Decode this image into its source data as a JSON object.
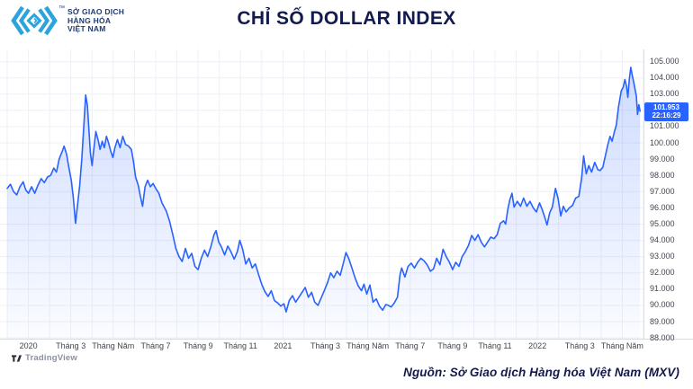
{
  "header": {
    "logo": {
      "trademark": "™",
      "lines": [
        "SỞ GIAO DỊCH",
        "HÀNG HÓA",
        "VIỆT NAM"
      ],
      "icon_color": "#2ba3dc",
      "text_color": "#1f3a70"
    },
    "title": "CHỈ SỐ DOLLAR INDEX",
    "title_color": "#131b4e"
  },
  "chart_data": {
    "type": "area",
    "title": "CHỈ SỐ DOLLAR INDEX",
    "x_unit": "months since Jan 2020",
    "xlim": [
      -1.0,
      29.0
    ],
    "ylim": [
      87.95,
      105.75
    ],
    "grid": true,
    "line_color": "#2962ff",
    "fill_top": "rgba(41,98,255,0.24)",
    "fill_bottom": "rgba(41,98,255,0.02)",
    "grid_color": "#edf0f7",
    "axis_line_color": "#d9dce4",
    "x_ticks": [
      {
        "label": "2020",
        "t": 0
      },
      {
        "label": "Tháng 3",
        "t": 2
      },
      {
        "label": "Tháng Năm",
        "t": 4
      },
      {
        "label": "Tháng 7",
        "t": 6
      },
      {
        "label": "Tháng 9",
        "t": 8
      },
      {
        "label": "Tháng 11",
        "t": 10
      },
      {
        "label": "2021",
        "t": 12
      },
      {
        "label": "Tháng 3",
        "t": 14
      },
      {
        "label": "Tháng Năm",
        "t": 16
      },
      {
        "label": "Tháng 7",
        "t": 18
      },
      {
        "label": "Tháng 9",
        "t": 20
      },
      {
        "label": "Tháng 11",
        "t": 22
      },
      {
        "label": "2022",
        "t": 24
      },
      {
        "label": "Tháng 3",
        "t": 26
      },
      {
        "label": "Tháng Năm",
        "t": 28
      }
    ],
    "y_ticks": [
      {
        "label": "105.000",
        "value": 105
      },
      {
        "label": "104.000",
        "value": 104
      },
      {
        "label": "103.000",
        "value": 103
      },
      {
        "label": "101.000",
        "value": 101
      },
      {
        "label": "100.000",
        "value": 100
      },
      {
        "label": "99.000",
        "value": 99
      },
      {
        "label": "98.000",
        "value": 98
      },
      {
        "label": "97.000",
        "value": 97
      },
      {
        "label": "96.000",
        "value": 96
      },
      {
        "label": "95.000",
        "value": 95
      },
      {
        "label": "94.000",
        "value": 94
      },
      {
        "label": "93.000",
        "value": 93
      },
      {
        "label": "92.000",
        "value": 92
      },
      {
        "label": "91.000",
        "value": 91
      },
      {
        "label": "90.000",
        "value": 90
      },
      {
        "label": "89.000",
        "value": 89
      },
      {
        "label": "88.000",
        "value": 88
      }
    ],
    "last_price": {
      "value": "101.953",
      "time": "22:16:29",
      "badge_color": "#2962ff"
    },
    "series": [
      {
        "name": "Dollar Index",
        "points": [
          [
            -1.0,
            97.2
          ],
          [
            -0.85,
            97.45
          ],
          [
            -0.7,
            97.0
          ],
          [
            -0.55,
            96.8
          ],
          [
            -0.4,
            97.3
          ],
          [
            -0.25,
            97.6
          ],
          [
            -0.12,
            97.1
          ],
          [
            0.0,
            96.9
          ],
          [
            0.15,
            97.3
          ],
          [
            0.3,
            96.9
          ],
          [
            0.45,
            97.4
          ],
          [
            0.6,
            97.8
          ],
          [
            0.75,
            97.55
          ],
          [
            0.9,
            97.9
          ],
          [
            1.05,
            98.0
          ],
          [
            1.2,
            98.45
          ],
          [
            1.32,
            98.2
          ],
          [
            1.45,
            99.0
          ],
          [
            1.6,
            99.5
          ],
          [
            1.68,
            99.8
          ],
          [
            1.8,
            99.3
          ],
          [
            1.92,
            98.4
          ],
          [
            2.02,
            97.7
          ],
          [
            2.12,
            96.6
          ],
          [
            2.22,
            95.05
          ],
          [
            2.32,
            96.2
          ],
          [
            2.42,
            97.4
          ],
          [
            2.52,
            99.1
          ],
          [
            2.62,
            101.2
          ],
          [
            2.7,
            102.95
          ],
          [
            2.78,
            102.3
          ],
          [
            2.85,
            100.9
          ],
          [
            2.92,
            99.4
          ],
          [
            3.0,
            98.6
          ],
          [
            3.08,
            99.6
          ],
          [
            3.18,
            100.7
          ],
          [
            3.28,
            100.2
          ],
          [
            3.38,
            99.6
          ],
          [
            3.48,
            100.1
          ],
          [
            3.58,
            99.7
          ],
          [
            3.68,
            100.4
          ],
          [
            3.78,
            100.0
          ],
          [
            3.88,
            99.5
          ],
          [
            3.98,
            99.1
          ],
          [
            4.08,
            99.7
          ],
          [
            4.2,
            100.2
          ],
          [
            4.32,
            99.7
          ],
          [
            4.45,
            100.4
          ],
          [
            4.58,
            99.9
          ],
          [
            4.72,
            99.8
          ],
          [
            4.85,
            99.6
          ],
          [
            4.95,
            98.9
          ],
          [
            5.05,
            97.9
          ],
          [
            5.18,
            97.4
          ],
          [
            5.28,
            96.7
          ],
          [
            5.38,
            96.1
          ],
          [
            5.5,
            97.3
          ],
          [
            5.62,
            97.7
          ],
          [
            5.75,
            97.3
          ],
          [
            5.88,
            97.5
          ],
          [
            6.0,
            97.2
          ],
          [
            6.15,
            96.9
          ],
          [
            6.3,
            96.3
          ],
          [
            6.5,
            95.8
          ],
          [
            6.65,
            95.2
          ],
          [
            6.8,
            94.4
          ],
          [
            6.95,
            93.5
          ],
          [
            7.1,
            93.0
          ],
          [
            7.25,
            92.7
          ],
          [
            7.4,
            93.5
          ],
          [
            7.55,
            92.9
          ],
          [
            7.7,
            93.2
          ],
          [
            7.85,
            92.4
          ],
          [
            8.0,
            92.2
          ],
          [
            8.15,
            92.9
          ],
          [
            8.3,
            93.4
          ],
          [
            8.45,
            93.0
          ],
          [
            8.6,
            93.6
          ],
          [
            8.75,
            94.35
          ],
          [
            8.85,
            94.6
          ],
          [
            8.97,
            93.9
          ],
          [
            9.1,
            93.6
          ],
          [
            9.25,
            93.1
          ],
          [
            9.4,
            93.65
          ],
          [
            9.55,
            93.3
          ],
          [
            9.7,
            92.85
          ],
          [
            9.85,
            93.3
          ],
          [
            9.97,
            94.0
          ],
          [
            10.1,
            93.45
          ],
          [
            10.25,
            92.55
          ],
          [
            10.4,
            92.9
          ],
          [
            10.55,
            92.3
          ],
          [
            10.7,
            92.55
          ],
          [
            10.85,
            91.9
          ],
          [
            11.0,
            91.3
          ],
          [
            11.15,
            90.85
          ],
          [
            11.3,
            90.55
          ],
          [
            11.45,
            90.9
          ],
          [
            11.6,
            90.3
          ],
          [
            11.75,
            90.15
          ],
          [
            11.9,
            89.95
          ],
          [
            12.05,
            90.1
          ],
          [
            12.15,
            89.6
          ],
          [
            12.3,
            90.3
          ],
          [
            12.45,
            90.6
          ],
          [
            12.6,
            90.2
          ],
          [
            12.75,
            90.5
          ],
          [
            12.9,
            90.8
          ],
          [
            13.05,
            91.1
          ],
          [
            13.2,
            90.5
          ],
          [
            13.35,
            90.8
          ],
          [
            13.5,
            90.2
          ],
          [
            13.65,
            90.0
          ],
          [
            13.8,
            90.45
          ],
          [
            13.95,
            90.9
          ],
          [
            14.1,
            91.4
          ],
          [
            14.25,
            92.0
          ],
          [
            14.4,
            91.7
          ],
          [
            14.55,
            92.1
          ],
          [
            14.7,
            91.85
          ],
          [
            14.85,
            92.6
          ],
          [
            14.97,
            93.25
          ],
          [
            15.1,
            92.9
          ],
          [
            15.25,
            92.3
          ],
          [
            15.4,
            91.7
          ],
          [
            15.55,
            91.2
          ],
          [
            15.7,
            90.9
          ],
          [
            15.82,
            91.3
          ],
          [
            15.95,
            90.7
          ],
          [
            16.1,
            91.25
          ],
          [
            16.25,
            90.2
          ],
          [
            16.4,
            90.4
          ],
          [
            16.55,
            89.95
          ],
          [
            16.7,
            89.7
          ],
          [
            16.85,
            90.05
          ],
          [
            16.97,
            90.0
          ],
          [
            17.1,
            89.9
          ],
          [
            17.25,
            90.15
          ],
          [
            17.4,
            90.5
          ],
          [
            17.52,
            91.9
          ],
          [
            17.6,
            92.3
          ],
          [
            17.75,
            91.75
          ],
          [
            17.9,
            92.4
          ],
          [
            18.05,
            92.6
          ],
          [
            18.2,
            92.3
          ],
          [
            18.35,
            92.65
          ],
          [
            18.5,
            92.9
          ],
          [
            18.65,
            92.75
          ],
          [
            18.8,
            92.5
          ],
          [
            18.95,
            92.1
          ],
          [
            19.1,
            92.25
          ],
          [
            19.25,
            92.9
          ],
          [
            19.4,
            92.5
          ],
          [
            19.55,
            93.45
          ],
          [
            19.7,
            93.0
          ],
          [
            19.85,
            92.65
          ],
          [
            20.0,
            92.2
          ],
          [
            20.15,
            92.65
          ],
          [
            20.3,
            92.4
          ],
          [
            20.45,
            93.0
          ],
          [
            20.6,
            93.3
          ],
          [
            20.75,
            93.7
          ],
          [
            20.9,
            94.3
          ],
          [
            21.05,
            94.0
          ],
          [
            21.2,
            94.35
          ],
          [
            21.35,
            93.9
          ],
          [
            21.5,
            93.6
          ],
          [
            21.65,
            93.9
          ],
          [
            21.8,
            94.2
          ],
          [
            21.95,
            94.1
          ],
          [
            22.1,
            94.35
          ],
          [
            22.25,
            95.05
          ],
          [
            22.4,
            95.2
          ],
          [
            22.5,
            95.0
          ],
          [
            22.6,
            95.9
          ],
          [
            22.7,
            96.5
          ],
          [
            22.8,
            96.9
          ],
          [
            22.9,
            96.05
          ],
          [
            23.05,
            96.4
          ],
          [
            23.2,
            96.1
          ],
          [
            23.35,
            96.6
          ],
          [
            23.5,
            96.1
          ],
          [
            23.65,
            96.4
          ],
          [
            23.8,
            96.0
          ],
          [
            23.95,
            95.75
          ],
          [
            24.1,
            96.3
          ],
          [
            24.22,
            95.9
          ],
          [
            24.35,
            95.4
          ],
          [
            24.45,
            94.95
          ],
          [
            24.58,
            95.7
          ],
          [
            24.7,
            96.05
          ],
          [
            24.85,
            97.2
          ],
          [
            24.97,
            96.6
          ],
          [
            25.1,
            95.5
          ],
          [
            25.22,
            96.1
          ],
          [
            25.35,
            95.75
          ],
          [
            25.5,
            96.0
          ],
          [
            25.65,
            96.15
          ],
          [
            25.8,
            96.6
          ],
          [
            25.95,
            96.7
          ],
          [
            26.08,
            97.8
          ],
          [
            26.18,
            99.2
          ],
          [
            26.3,
            98.1
          ],
          [
            26.42,
            98.6
          ],
          [
            26.55,
            98.2
          ],
          [
            26.7,
            98.8
          ],
          [
            26.85,
            98.35
          ],
          [
            26.95,
            98.3
          ],
          [
            27.08,
            98.5
          ],
          [
            27.2,
            99.2
          ],
          [
            27.32,
            99.9
          ],
          [
            27.42,
            100.4
          ],
          [
            27.52,
            100.1
          ],
          [
            27.62,
            100.65
          ],
          [
            27.72,
            101.1
          ],
          [
            27.82,
            102.2
          ],
          [
            27.95,
            103.2
          ],
          [
            28.05,
            103.45
          ],
          [
            28.12,
            103.9
          ],
          [
            28.2,
            103.5
          ],
          [
            28.26,
            102.8
          ],
          [
            28.33,
            103.9
          ],
          [
            28.4,
            104.65
          ],
          [
            28.47,
            104.15
          ],
          [
            28.53,
            103.8
          ],
          [
            28.6,
            103.3
          ],
          [
            28.66,
            102.9
          ],
          [
            28.72,
            101.75
          ],
          [
            28.78,
            102.35
          ],
          [
            28.84,
            101.953
          ]
        ]
      }
    ]
  },
  "attribution": {
    "text": "TradingView"
  },
  "footer": {
    "source": "Nguồn: Sở Giao dịch Hàng hóa Việt Nam (MXV)"
  }
}
